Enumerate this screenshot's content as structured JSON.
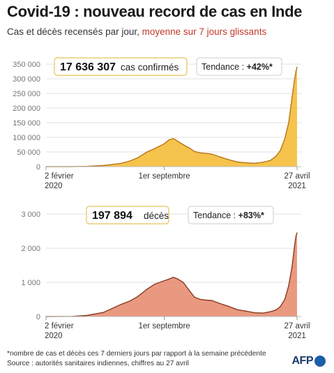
{
  "title": "Covid-19 : nouveau record de cas en Inde",
  "subtitle_main": "Cas et décès recensés par jour, ",
  "subtitle_highlight": "moyenne sur 7 jours glissants",
  "footer_note": "*nombre de cas et décès ces 7 derniers jours par rapport à la semaine précédente",
  "footer_source": "Source : autorités sanitaires indiennes, chiffres au 27 avril",
  "logo": "AFP",
  "colors": {
    "cases_fill": "#f5b82e",
    "cases_line": "#b5761a",
    "deaths_fill": "#e5876a",
    "deaths_line": "#8a3a22",
    "box_border": "#e8c25a",
    "grid": "#e2e2e2",
    "axis_text": "#777777"
  },
  "chart_data": [
    {
      "type": "area",
      "id": "cases",
      "callout_value": "17 636 307",
      "callout_label": "cas confirmés",
      "trend_label": "Tendance : ",
      "trend_value": "+42%*",
      "y_ticks": [
        "0",
        "50 000",
        "100 000",
        "150 000",
        "200 000",
        "250 000",
        "300 000",
        "350 000"
      ],
      "ylim": [
        0,
        350000
      ],
      "x_ticks": [
        {
          "date": "2020-02-02",
          "label_line1": "2 février",
          "label_line2": "2020"
        },
        {
          "date": "2020-09-01",
          "label_line1": "1er septembre",
          "label_line2": ""
        },
        {
          "date": "2021-04-27",
          "label_line1": "27 avril",
          "label_line2": "2021"
        }
      ],
      "xlim": [
        "2020-02-02",
        "2021-04-27"
      ],
      "series": [
        {
          "x": [
            "2020-02-02",
            "2020-03-15",
            "2020-04-15",
            "2020-05-15",
            "2020-06-15",
            "2020-07-01",
            "2020-07-15",
            "2020-08-01",
            "2020-08-15",
            "2020-09-01",
            "2020-09-10",
            "2020-09-17",
            "2020-09-25",
            "2020-10-05",
            "2020-10-15",
            "2020-10-25",
            "2020-11-05",
            "2020-11-15",
            "2020-11-25",
            "2020-12-10",
            "2020-12-25",
            "2021-01-10",
            "2021-01-25",
            "2021-02-10",
            "2021-02-25",
            "2021-03-10",
            "2021-03-20",
            "2021-03-28",
            "2021-04-05",
            "2021-04-12",
            "2021-04-18",
            "2021-04-22",
            "2021-04-25",
            "2021-04-27"
          ],
          "values": [
            0,
            100,
            1000,
            4000,
            11000,
            19000,
            30000,
            50000,
            62000,
            78000,
            92000,
            96000,
            87000,
            75000,
            65000,
            52000,
            47000,
            45000,
            43000,
            33000,
            24000,
            16000,
            13000,
            11500,
            15000,
            21000,
            35000,
            55000,
            95000,
            150000,
            235000,
            290000,
            325000,
            340000
          ]
        }
      ]
    },
    {
      "type": "area",
      "id": "deaths",
      "callout_value": "197 894",
      "callout_label": "décès",
      "trend_label": "Tendance : ",
      "trend_value": "+83%*",
      "y_ticks": [
        "0",
        "1 000",
        "2 000",
        "3 000"
      ],
      "ylim": [
        0,
        3000
      ],
      "x_ticks": [
        {
          "date": "2020-02-02",
          "label_line1": "2 février",
          "label_line2": "2020"
        },
        {
          "date": "2020-09-01",
          "label_line1": "1er septembre",
          "label_line2": ""
        },
        {
          "date": "2021-04-27",
          "label_line1": "27 avril",
          "label_line2": "2021"
        }
      ],
      "xlim": [
        "2020-02-02",
        "2021-04-27"
      ],
      "series": [
        {
          "x": [
            "2020-02-02",
            "2020-03-20",
            "2020-04-15",
            "2020-05-15",
            "2020-06-15",
            "2020-07-01",
            "2020-07-15",
            "2020-08-01",
            "2020-08-15",
            "2020-09-01",
            "2020-09-10",
            "2020-09-17",
            "2020-09-25",
            "2020-10-05",
            "2020-10-15",
            "2020-10-25",
            "2020-11-05",
            "2020-11-15",
            "2020-11-25",
            "2020-12-10",
            "2020-12-25",
            "2021-01-10",
            "2021-01-25",
            "2021-02-10",
            "2021-02-25",
            "2021-03-10",
            "2021-03-20",
            "2021-03-28",
            "2021-04-05",
            "2021-04-12",
            "2021-04-18",
            "2021-04-22",
            "2021-04-25",
            "2021-04-27"
          ],
          "values": [
            0,
            5,
            30,
            120,
            350,
            450,
            580,
            800,
            950,
            1050,
            1100,
            1150,
            1100,
            1000,
            780,
            570,
            500,
            480,
            470,
            380,
            300,
            200,
            160,
            110,
            100,
            140,
            190,
            290,
            500,
            900,
            1450,
            2000,
            2350,
            2450
          ]
        }
      ]
    }
  ]
}
